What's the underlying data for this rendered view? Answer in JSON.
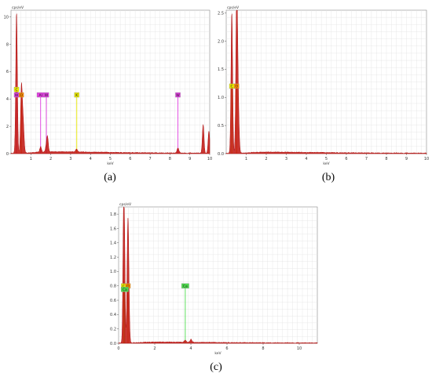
{
  "chart_data": [
    {
      "type": "line",
      "caption": "(a)",
      "ylabel": "cps/eV",
      "xlabel": "keV",
      "xlim": [
        0,
        10
      ],
      "ylim": [
        0,
        10.5
      ],
      "xticks": [
        1,
        2,
        3,
        4,
        5,
        6,
        7,
        8,
        9,
        10
      ],
      "yticks": [
        0,
        2,
        4,
        6,
        8,
        10
      ],
      "grid": true,
      "series": [
        {
          "peaks": [
            {
              "x": 0.28,
              "y": 10.3,
              "w": 0.04
            },
            {
              "x": 0.52,
              "y": 4.3,
              "w": 0.04
            },
            {
              "x": 0.6,
              "y": 2.6,
              "w": 0.05
            },
            {
              "x": 1.49,
              "y": 0.4,
              "w": 0.04
            },
            {
              "x": 1.78,
              "y": 0.45,
              "w": 0.04
            },
            {
              "x": 1.84,
              "y": 1.0,
              "w": 0.04
            },
            {
              "x": 3.3,
              "y": 0.2,
              "w": 0.05
            },
            {
              "x": 8.4,
              "y": 0.35,
              "w": 0.05
            },
            {
              "x": 9.67,
              "y": 2.1,
              "w": 0.04
            },
            {
              "x": 9.96,
              "y": 1.6,
              "w": 0.04
            }
          ],
          "background": 0.08
        }
      ],
      "markers": [
        {
          "label": "C",
          "x": 0.28,
          "y": 4.7,
          "color": "#e8e800"
        },
        {
          "label": "W",
          "x": 0.28,
          "y": 4.3,
          "color": "#e040e0"
        },
        {
          "label": "O",
          "x": 0.52,
          "y": 4.3,
          "color": "#ff8c00"
        },
        {
          "label": "Al",
          "x": 1.49,
          "y": 4.3,
          "color": "#e040e0"
        },
        {
          "label": "W",
          "x": 1.78,
          "y": 4.3,
          "color": "#e040e0"
        },
        {
          "label": "K",
          "x": 3.31,
          "y": 4.3,
          "color": "#e8e800"
        },
        {
          "label": "W",
          "x": 8.4,
          "y": 4.3,
          "color": "#e040e0"
        }
      ]
    },
    {
      "type": "line",
      "caption": "(b)",
      "ylabel": "cps/eV",
      "xlabel": "keV",
      "xlim": [
        0,
        10
      ],
      "ylim": [
        0,
        2.55
      ],
      "xticks": [
        1,
        2,
        3,
        4,
        5,
        6,
        7,
        8,
        9,
        10
      ],
      "yticks": [
        0,
        0.5,
        1.0,
        1.5,
        2.0,
        2.5
      ],
      "grid": true,
      "series": [
        {
          "peaks": [
            {
              "x": 0.28,
              "y": 2.5,
              "w": 0.04
            },
            {
              "x": 0.52,
              "y": 2.5,
              "w": 0.04
            },
            {
              "x": 0.58,
              "y": 1.1,
              "w": 0.05
            }
          ],
          "background": 0.06
        }
      ],
      "markers": [
        {
          "label": "C",
          "x": 0.28,
          "y": 1.2,
          "color": "#e8e800"
        },
        {
          "label": "O",
          "x": 0.52,
          "y": 1.2,
          "color": "#ff8c00"
        }
      ]
    },
    {
      "type": "line",
      "caption": "(c)",
      "ylabel": "cps/eV",
      "xlabel": "keV",
      "xlim": [
        0,
        11
      ],
      "ylim": [
        0,
        1.9
      ],
      "xticks": [
        0,
        2,
        4,
        6,
        8,
        10
      ],
      "yticks": [
        0.0,
        0.2,
        0.4,
        0.6,
        0.8,
        1.0,
        1.2,
        1.4,
        1.6,
        1.8
      ],
      "grid": true,
      "series": [
        {
          "peaks": [
            {
              "x": 0.28,
              "y": 1.9,
              "w": 0.04
            },
            {
              "x": 0.52,
              "y": 1.74,
              "w": 0.05
            },
            {
              "x": 0.34,
              "y": 0.8,
              "w": 0.03
            },
            {
              "x": 3.69,
              "y": 0.03,
              "w": 0.05
            },
            {
              "x": 4.01,
              "y": 0.04,
              "w": 0.05
            }
          ],
          "background": 0.05
        }
      ],
      "markers": [
        {
          "label": "C",
          "x": 0.28,
          "y": 0.8,
          "color": "#e8e800"
        },
        {
          "label": "O",
          "x": 0.52,
          "y": 0.8,
          "color": "#ff8c00"
        },
        {
          "label": "Ca",
          "x": 0.34,
          "y": 0.75,
          "color": "#4ddb4d"
        },
        {
          "label": "Ca",
          "x": 3.69,
          "y": 0.8,
          "color": "#4ddb4d"
        }
      ]
    }
  ]
}
